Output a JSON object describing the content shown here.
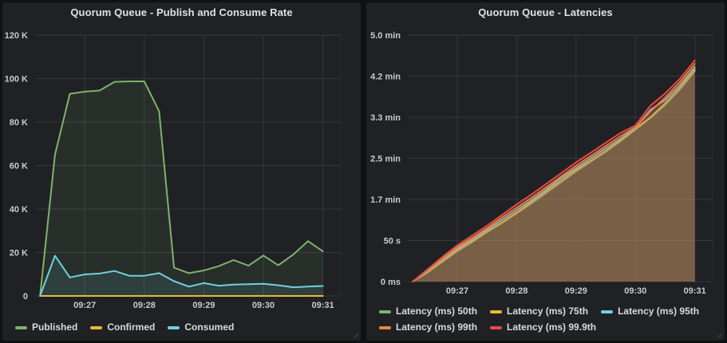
{
  "panels": [
    {
      "title": "Quorum Queue - Publish and Consume Rate"
    },
    {
      "title": "Quorum Queue - Latencies"
    }
  ],
  "colors": {
    "green": "#7EB26D",
    "yellow": "#EAB839",
    "cyan": "#6ED0E0",
    "orange": "#EF843C",
    "red": "#E24D42",
    "panel_bg": "#1f2124",
    "page_bg": "#101112"
  },
  "chart_data": [
    {
      "type": "area",
      "title": "Quorum Queue - Publish and Consume Rate",
      "x": [
        "09:26:15",
        "09:26:30",
        "09:26:45",
        "09:27:00",
        "09:27:15",
        "09:27:30",
        "09:27:45",
        "09:28:00",
        "09:28:15",
        "09:28:30",
        "09:28:45",
        "09:29:00",
        "09:29:15",
        "09:29:30",
        "09:29:45",
        "09:30:00",
        "09:30:15",
        "09:30:30",
        "09:30:45",
        "09:31:00"
      ],
      "x_domain": [
        "09:26:10",
        "09:31:18"
      ],
      "x_ticks": [
        "09:27",
        "09:28",
        "09:29",
        "09:30",
        "09:31"
      ],
      "ylim": [
        0,
        120000
      ],
      "y_unit": "messages/s",
      "y_ticks": {
        "values": [
          0,
          20000,
          40000,
          60000,
          80000,
          100000,
          120000
        ],
        "labels": [
          "0",
          "20 K",
          "40 K",
          "60 K",
          "80 K",
          "100 K",
          "120 K"
        ]
      },
      "grid": true,
      "legend_position": "bottom",
      "series": [
        {
          "name": "Published",
          "color": "#7EB26D",
          "fill_opacity": 0.1,
          "values": [
            0,
            65000,
            93000,
            94000,
            94500,
            98500,
            98700,
            98700,
            85000,
            13000,
            10500,
            11700,
            13700,
            16500,
            13900,
            18600,
            14100,
            19000,
            25200,
            20500
          ]
        },
        {
          "name": "Confirmed",
          "color": "#EAB839",
          "fill_opacity": 0.1,
          "values": [
            0,
            0,
            0,
            0,
            0,
            0,
            0,
            0,
            0,
            0,
            0,
            0,
            0,
            0,
            0,
            0,
            0,
            0,
            0,
            0
          ]
        },
        {
          "name": "Consumed",
          "color": "#6ED0E0",
          "fill_opacity": 0.1,
          "values": [
            0,
            18500,
            8500,
            9900,
            10300,
            11500,
            9300,
            9300,
            10500,
            6800,
            4300,
            5900,
            4700,
            5200,
            5400,
            5600,
            4900,
            4000,
            4300,
            4600
          ]
        }
      ]
    },
    {
      "type": "area",
      "title": "Quorum Queue - Latencies",
      "x": [
        "09:26:15",
        "09:26:30",
        "09:26:45",
        "09:27:00",
        "09:27:15",
        "09:27:30",
        "09:27:45",
        "09:28:00",
        "09:28:15",
        "09:28:30",
        "09:28:45",
        "09:29:00",
        "09:29:15",
        "09:29:30",
        "09:29:45",
        "09:30:00",
        "09:30:15",
        "09:30:30",
        "09:30:45",
        "09:31:00"
      ],
      "x_domain": [
        "09:26:10",
        "09:31:18"
      ],
      "x_ticks": [
        "09:27",
        "09:28",
        "09:29",
        "09:30",
        "09:31"
      ],
      "ylim": [
        0,
        300
      ],
      "y_unit": "seconds",
      "y_ticks": {
        "values": [
          0,
          50,
          100,
          150,
          200,
          250,
          300
        ],
        "labels": [
          "0 ms",
          "50 s",
          "1.7 min",
          "2.5 min",
          "3.3 min",
          "4.2 min",
          "5.0 min"
        ]
      },
      "grid": true,
      "legend_position": "bottom",
      "series": [
        {
          "name": "Latency (ms) 50th",
          "color": "#7EB26D",
          "fill_opacity": 0.15,
          "values": [
            0,
            11,
            24,
            37,
            48,
            60,
            71,
            83,
            95,
            108,
            121,
            134,
            146,
            158,
            171,
            185,
            199,
            215,
            234,
            256
          ]
        },
        {
          "name": "Latency (ms) 75th",
          "color": "#EAB839",
          "fill_opacity": 0.15,
          "values": [
            0,
            12,
            25,
            38,
            49,
            61,
            72,
            84,
            97,
            110,
            123,
            136,
            147,
            159,
            172,
            186,
            200,
            217,
            236,
            258
          ]
        },
        {
          "name": "Latency (ms) 95th",
          "color": "#6ED0E0",
          "fill_opacity": 0.15,
          "values": [
            0,
            13,
            27,
            40,
            51,
            63,
            75,
            87,
            99,
            112,
            126,
            138,
            150,
            162,
            174,
            187,
            209,
            221,
            239,
            261
          ]
        },
        {
          "name": "Latency (ms) 99th",
          "color": "#EF843C",
          "fill_opacity": 0.15,
          "values": [
            0,
            14,
            28,
            42,
            53,
            65,
            78,
            90,
            102,
            115,
            128,
            141,
            153,
            165,
            177,
            188,
            207,
            224,
            243,
            265
          ]
        },
        {
          "name": "Latency (ms) 99.9th",
          "color": "#E24D42",
          "fill_opacity": 0.15,
          "values": [
            0,
            15,
            30,
            44,
            56,
            68,
            81,
            94,
            106,
            119,
            132,
            145,
            157,
            169,
            181,
            190,
            214,
            229,
            247,
            269
          ]
        }
      ]
    }
  ]
}
